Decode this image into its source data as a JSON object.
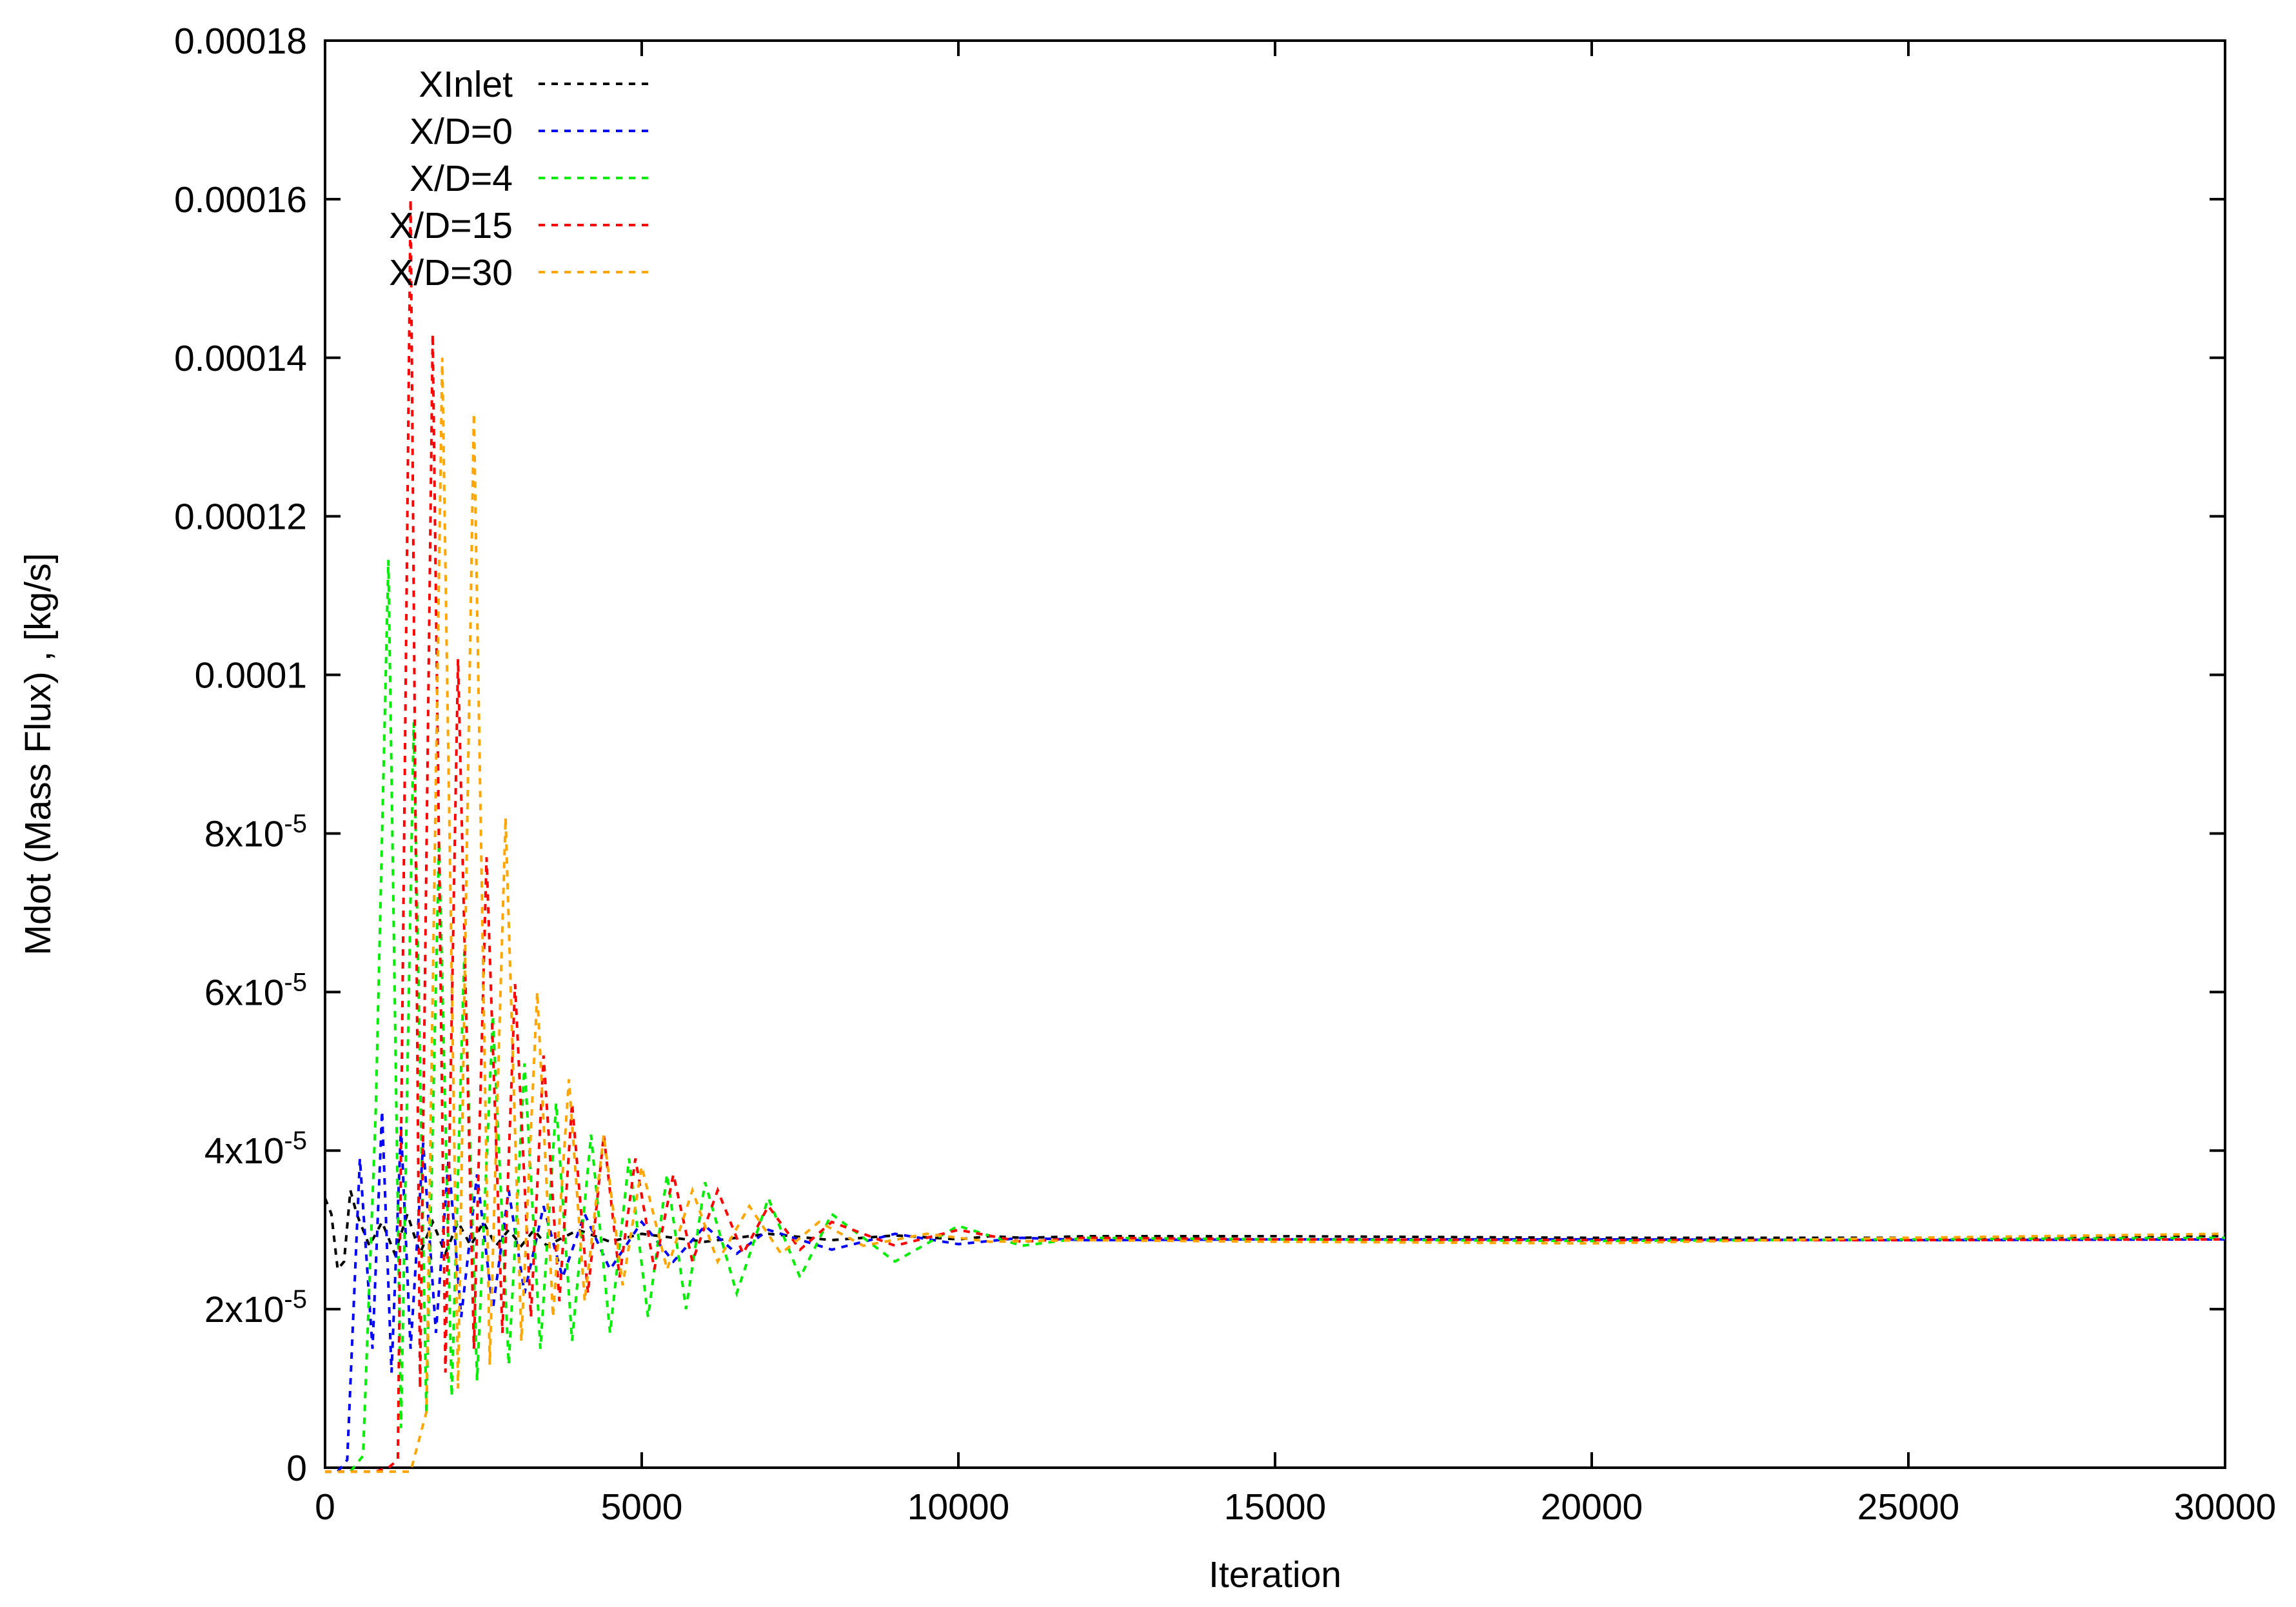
{
  "chart_data": {
    "type": "line",
    "title": "",
    "xlabel": "Iteration",
    "ylabel": "Mdot (Mass Flux) , [kg/s]",
    "xlim": [
      0,
      30000
    ],
    "ylim": [
      0,
      0.00018
    ],
    "grid": false,
    "legend_position": "top-left",
    "x_ticks": [
      0,
      5000,
      10000,
      15000,
      20000,
      25000,
      30000
    ],
    "x_tick_labels": [
      "0",
      "5000",
      "10000",
      "15000",
      "20000",
      "25000",
      "30000"
    ],
    "y_ticks": [
      0,
      2e-05,
      4e-05,
      6e-05,
      8e-05,
      0.0001,
      0.00012,
      0.00014,
      0.00016,
      0.00018
    ],
    "y_tick_labels": [
      {
        "base": "0",
        "exp": ""
      },
      {
        "base": "2x10",
        "exp": "-5"
      },
      {
        "base": "4x10",
        "exp": "-5"
      },
      {
        "base": "6x10",
        "exp": "-5"
      },
      {
        "base": "8x10",
        "exp": "-5"
      },
      {
        "base": "0.0001",
        "exp": ""
      },
      {
        "base": "0.00012",
        "exp": ""
      },
      {
        "base": "0.00014",
        "exp": ""
      },
      {
        "base": "0.00016",
        "exp": ""
      },
      {
        "base": "0.00018",
        "exp": ""
      }
    ],
    "series": [
      {
        "name": "XInlet",
        "color": "#000000",
        "x": [
          0,
          100,
          200,
          300,
          400,
          500,
          700,
          900,
          1100,
          1300,
          1500,
          1700,
          1900,
          2100,
          2300,
          2500,
          2700,
          2900,
          3100,
          3300,
          3500,
          4000,
          4500,
          5000,
          6000,
          7000,
          8000,
          9000,
          10000,
          10500,
          11000,
          12000,
          15000,
          20000,
          25000,
          30000
        ],
        "y": [
          3.4e-05,
          3.2e-05,
          2.5e-05,
          2.6e-05,
          3.5e-05,
          3.2e-05,
          2.8e-05,
          3.1e-05,
          2.7e-05,
          3.2e-05,
          2.7e-05,
          3.1e-05,
          2.7e-05,
          3.1e-05,
          2.8e-05,
          3.1e-05,
          2.8e-05,
          3e-05,
          2.8e-05,
          3e-05,
          2.8e-05,
          3e-05,
          2.85e-05,
          2.95e-05,
          2.85e-05,
          2.95e-05,
          2.87e-05,
          2.93e-05,
          2.88e-05,
          2.92e-05,
          2.9e-05,
          2.92e-05,
          2.92e-05,
          2.9e-05,
          2.9e-05,
          2.92e-05
        ]
      },
      {
        "name": "X/D=0",
        "color": "#0000ff",
        "x": [
          0,
          200,
          350,
          550,
          750,
          900,
          1050,
          1200,
          1350,
          1550,
          1750,
          1950,
          2150,
          2400,
          2650,
          2900,
          3150,
          3450,
          3750,
          4100,
          4500,
          5000,
          5500,
          6000,
          6500,
          7000,
          8000,
          9000,
          10000,
          11000,
          12000,
          15000,
          20000,
          25000,
          30000
        ],
        "y": [
          -5e-07,
          -5e-07,
          1e-06,
          3.9e-05,
          1.5e-05,
          4.5e-05,
          1.2e-05,
          4.3e-05,
          1.5e-05,
          4.1e-05,
          1.7e-05,
          3.9e-05,
          1.9e-05,
          3.7e-05,
          2e-05,
          3.5e-05,
          2.2e-05,
          3.3e-05,
          2.4e-05,
          3.2e-05,
          2.5e-05,
          3.1e-05,
          2.6e-05,
          3.05e-05,
          2.7e-05,
          3e-05,
          2.75e-05,
          2.95e-05,
          2.82e-05,
          2.9e-05,
          2.87e-05,
          2.88e-05,
          2.88e-05,
          2.87e-05,
          2.88e-05
        ]
      },
      {
        "name": "X/D=4",
        "color": "#00ee00",
        "x": [
          0,
          400,
          600,
          800,
          1000,
          1200,
          1400,
          1600,
          1800,
          2000,
          2200,
          2400,
          2650,
          2900,
          3150,
          3400,
          3650,
          3900,
          4200,
          4500,
          4800,
          5100,
          5400,
          5700,
          6000,
          6500,
          7000,
          7500,
          8000,
          9000,
          10000,
          11000,
          12000,
          15000,
          20000,
          25000,
          30000
        ],
        "y": [
          -5e-07,
          -5e-07,
          1.5e-06,
          4.5e-05,
          0.0001145,
          5e-06,
          9.4e-05,
          7e-06,
          7.9e-05,
          9e-06,
          6.5e-05,
          1.1e-05,
          5.7e-05,
          1.3e-05,
          5.1e-05,
          1.5e-05,
          4.6e-05,
          1.6e-05,
          4.2e-05,
          1.7e-05,
          3.9e-05,
          1.9e-05,
          3.7e-05,
          2e-05,
          3.6e-05,
          2.2e-05,
          3.4e-05,
          2.4e-05,
          3.2e-05,
          2.6e-05,
          3.05e-05,
          2.8e-05,
          2.9e-05,
          2.88e-05,
          2.86e-05,
          2.88e-05,
          2.9e-05
        ]
      },
      {
        "name": "X/D=15",
        "color": "#ff0000",
        "x": [
          0,
          500,
          800,
          1000,
          1150,
          1350,
          1500,
          1700,
          1900,
          2100,
          2350,
          2550,
          2800,
          3000,
          3250,
          3450,
          3700,
          3900,
          4150,
          4400,
          4650,
          4900,
          5200,
          5500,
          5800,
          6200,
          6600,
          7000,
          7500,
          8000,
          9000,
          10000,
          11000,
          12000,
          15000,
          20000,
          25000,
          30000
        ],
        "y": [
          -5e-07,
          -5e-07,
          -5e-07,
          0.0,
          1e-06,
          0.00016,
          1e-05,
          0.000143,
          1.2e-05,
          0.000102,
          1.5e-05,
          7.7e-05,
          1.7e-05,
          6.1e-05,
          1.9e-05,
          5.2e-05,
          2.1e-05,
          4.6e-05,
          2.2e-05,
          4.2e-05,
          2.4e-05,
          3.9e-05,
          2.5e-05,
          3.7e-05,
          2.6e-05,
          3.5e-05,
          2.7e-05,
          3.3e-05,
          2.75e-05,
          3.1e-05,
          2.8e-05,
          3e-05,
          2.85e-05,
          2.9e-05,
          2.88e-05,
          2.87e-05,
          2.87e-05,
          2.88e-05
        ]
      },
      {
        "name": "X/D=30",
        "color": "#ffa500",
        "x": [
          0,
          500,
          1000,
          1350,
          1600,
          1850,
          2100,
          2350,
          2600,
          2850,
          3100,
          3350,
          3600,
          3850,
          4100,
          4400,
          4700,
          5000,
          5400,
          5800,
          6200,
          6700,
          7200,
          7800,
          8500,
          9500,
          10500,
          12000,
          15000,
          20000,
          25000,
          30000
        ],
        "y": [
          -5e-07,
          -5e-07,
          -5e-07,
          -5e-07,
          7e-06,
          0.00014,
          1e-05,
          0.000133,
          1.3e-05,
          8.2e-05,
          1.6e-05,
          6e-05,
          1.9e-05,
          4.9e-05,
          2.1e-05,
          4.2e-05,
          2.3e-05,
          3.8e-05,
          2.5e-05,
          3.5e-05,
          2.6e-05,
          3.3e-05,
          2.7e-05,
          3.1e-05,
          2.8e-05,
          2.95e-05,
          2.85e-05,
          2.87e-05,
          2.85e-05,
          2.83e-05,
          2.9e-05,
          2.95e-05
        ]
      }
    ]
  }
}
